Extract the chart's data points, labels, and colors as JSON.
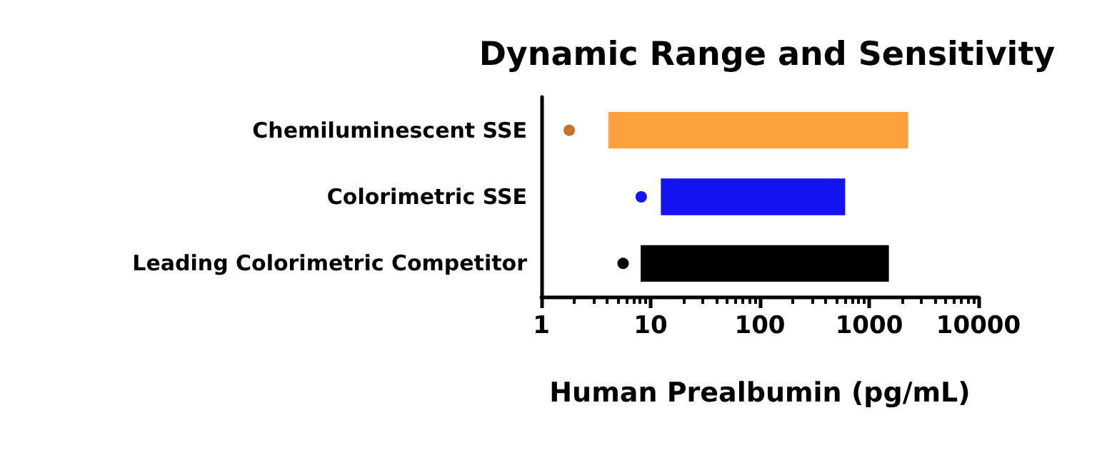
{
  "chart_data": {
    "type": "bar",
    "orientation": "horizontal",
    "title": "Dynamic Range and Sensitivity",
    "xlabel": "Human Prealbumin (pg/mL)",
    "categories": [
      "Chemiluminescent SSE",
      "Colorimetric SSE",
      "Leading Colorimetric Competitor"
    ],
    "series": [
      {
        "type": "bar",
        "colors": [
          "#ffa040",
          "#1414f0",
          "#000000"
        ],
        "base": [
          4.1,
          12.4,
          8.1
        ],
        "values": [
          2265.9,
          590.6,
          1506.9
        ]
      },
      {
        "type": "scatter",
        "colors": [
          "#c8732c",
          "#1414f0",
          "#000000"
        ],
        "values": [
          1.8,
          8.2,
          5.6
        ]
      }
    ],
    "log": "x",
    "xlim": [
      1,
      10000
    ],
    "xticks": [
      1,
      10,
      100,
      1000,
      10000
    ],
    "grid": false,
    "marker": "circle"
  }
}
